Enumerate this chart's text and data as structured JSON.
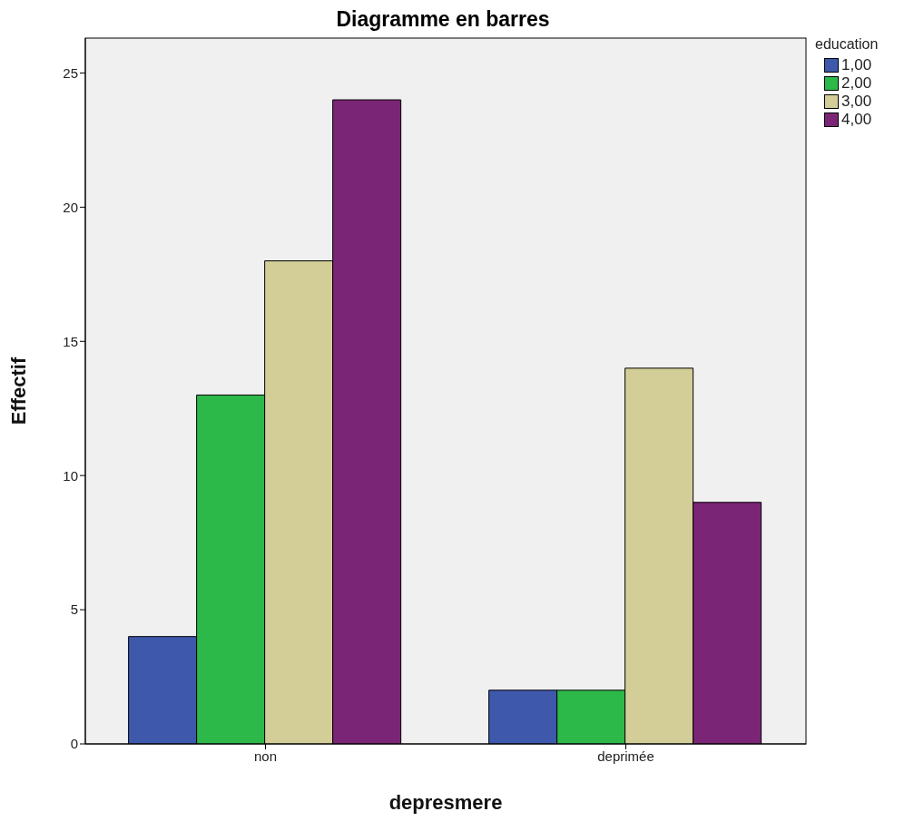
{
  "chart_data": {
    "type": "bar",
    "title": "Diagramme en barres",
    "xlabel": "depresmere",
    "ylabel": "Effectif",
    "legend_title": "education",
    "categories": [
      "non",
      "deprimée"
    ],
    "series": [
      {
        "name": "1,00",
        "color": "#3e58ac",
        "values": [
          4,
          2
        ]
      },
      {
        "name": "2,00",
        "color": "#2db84a",
        "values": [
          13,
          2
        ]
      },
      {
        "name": "3,00",
        "color": "#d3ce97",
        "values": [
          18,
          14
        ]
      },
      {
        "name": "4,00",
        "color": "#7b2577",
        "values": [
          24,
          9
        ]
      }
    ],
    "ylim": [
      0,
      26.3
    ],
    "yticks": [
      0,
      5,
      10,
      15,
      20,
      25
    ],
    "legend": "top right"
  }
}
